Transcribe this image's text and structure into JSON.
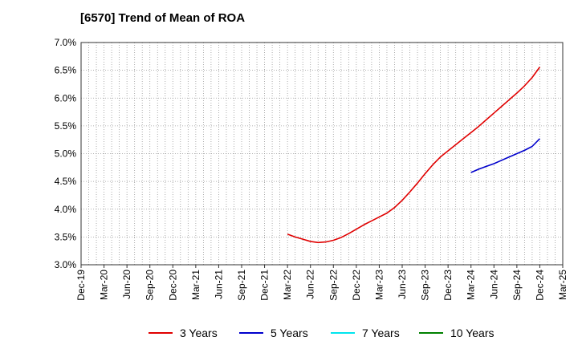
{
  "chart_data": {
    "type": "line",
    "title": "[6570]  Trend of Mean of ROA",
    "xlabel": "",
    "ylabel": "",
    "ylim": [
      3.0,
      7.0
    ],
    "y_ticks": [
      "3.0%",
      "3.5%",
      "4.0%",
      "4.5%",
      "5.0%",
      "5.5%",
      "6.0%",
      "6.5%",
      "7.0%"
    ],
    "x_ticks": [
      "Dec-19",
      "Mar-20",
      "Jun-20",
      "Sep-20",
      "Dec-20",
      "Mar-21",
      "Jun-21",
      "Sep-21",
      "Dec-21",
      "Mar-22",
      "Jun-22",
      "Sep-22",
      "Dec-22",
      "Mar-23",
      "Jun-23",
      "Sep-23",
      "Dec-23",
      "Mar-24",
      "Jun-24",
      "Sep-24",
      "Dec-24",
      "Mar-25"
    ],
    "grid": true,
    "legend_position": "bottom",
    "series": [
      {
        "name": "3 Years",
        "color": "#e00000",
        "points": [
          [
            "Mar-22",
            3.55
          ],
          [
            "Apr-22",
            3.5
          ],
          [
            "May-22",
            3.46
          ],
          [
            "Jun-22",
            3.42
          ],
          [
            "Jul-22",
            3.4
          ],
          [
            "Aug-22",
            3.41
          ],
          [
            "Sep-22",
            3.44
          ],
          [
            "Oct-22",
            3.49
          ],
          [
            "Nov-22",
            3.56
          ],
          [
            "Dec-22",
            3.64
          ],
          [
            "Jan-23",
            3.72
          ],
          [
            "Feb-23",
            3.79
          ],
          [
            "Mar-23",
            3.86
          ],
          [
            "Apr-23",
            3.93
          ],
          [
            "May-23",
            4.03
          ],
          [
            "Jun-23",
            4.16
          ],
          [
            "Jul-23",
            4.31
          ],
          [
            "Aug-23",
            4.47
          ],
          [
            "Sep-23",
            4.64
          ],
          [
            "Oct-23",
            4.8
          ],
          [
            "Nov-23",
            4.94
          ],
          [
            "Dec-23",
            5.05
          ],
          [
            "Jan-24",
            5.16
          ],
          [
            "Feb-24",
            5.27
          ],
          [
            "Mar-24",
            5.38
          ],
          [
            "Apr-24",
            5.49
          ],
          [
            "May-24",
            5.61
          ],
          [
            "Jun-24",
            5.73
          ],
          [
            "Jul-24",
            5.85
          ],
          [
            "Aug-24",
            5.97
          ],
          [
            "Sep-24",
            6.09
          ],
          [
            "Oct-24",
            6.22
          ],
          [
            "Nov-24",
            6.37
          ],
          [
            "Dec-24",
            6.56
          ]
        ]
      },
      {
        "name": "5 Years",
        "color": "#0000cc",
        "points": [
          [
            "Mar-24",
            4.66
          ],
          [
            "Apr-24",
            4.72
          ],
          [
            "May-24",
            4.77
          ],
          [
            "Jun-24",
            4.82
          ],
          [
            "Jul-24",
            4.88
          ],
          [
            "Aug-24",
            4.94
          ],
          [
            "Sep-24",
            5.0
          ],
          [
            "Oct-24",
            5.06
          ],
          [
            "Nov-24",
            5.13
          ],
          [
            "Dec-24",
            5.27
          ]
        ]
      },
      {
        "name": "7 Years",
        "color": "#00e5ee",
        "points": []
      },
      {
        "name": "10 Years",
        "color": "#008000",
        "points": []
      }
    ]
  }
}
